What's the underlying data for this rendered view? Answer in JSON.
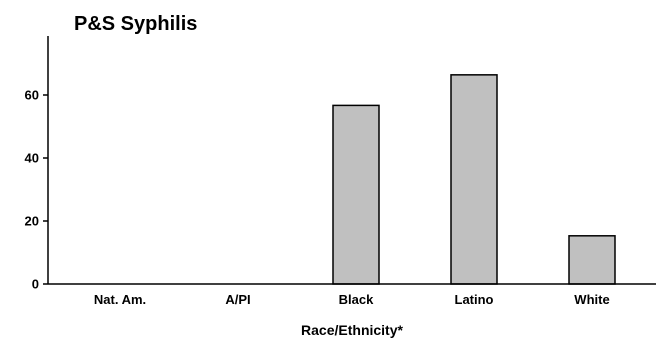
{
  "chart_data": {
    "type": "bar",
    "title": "P&S Syphilis",
    "xlabel": "Race/Ethnicity*",
    "ylabel": "",
    "categories": [
      "Nat. Am.",
      "A/PI",
      "Black",
      "Latino",
      "White"
    ],
    "values": [
      0,
      0,
      56.7,
      66.4,
      15.3
    ],
    "yticks": [
      0,
      20,
      40,
      60
    ],
    "ylim": [
      0,
      80
    ],
    "grid": false,
    "bar_color": "#c0c0c0",
    "bar_stroke": "#000000"
  }
}
